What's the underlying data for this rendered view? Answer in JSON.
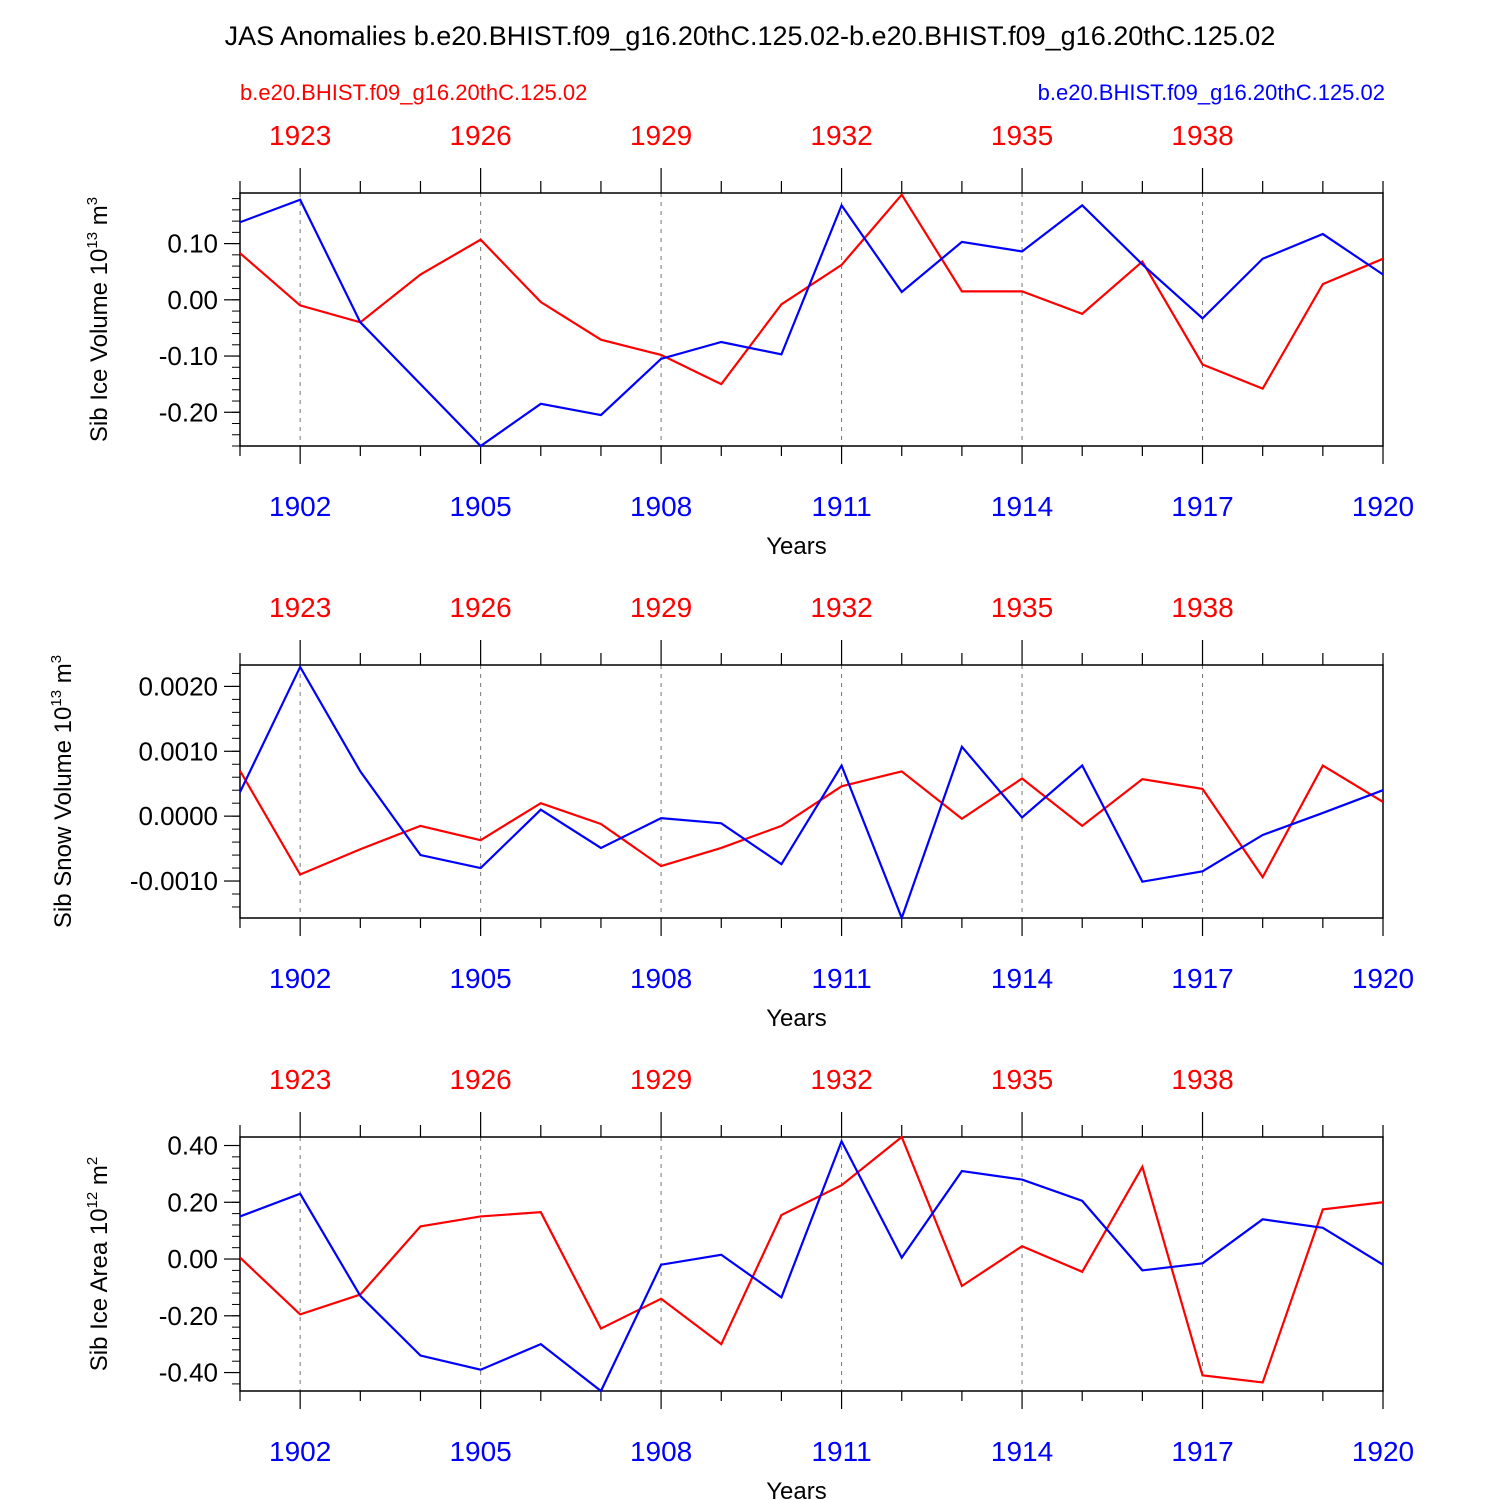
{
  "figure": {
    "title": "JAS Anomalies b.e20.BHIST.f09_g16.20thC.125.02-b.e20.BHIST.f09_g16.20thC.125.02",
    "left_case_label": "b.e20.BHIST.f09_g16.20thC.125.02",
    "right_case_label": "b.e20.BHIST.f09_g16.20thC.125.02",
    "colors": {
      "case_red": "#ff0000",
      "case_blue": "#0000ff",
      "axis": "#000000",
      "grid": "#777777"
    }
  },
  "chart_data": [
    {
      "type": "line",
      "ylabel": "Sib Ice Volume 10",
      "ylabel_exp": "13",
      "ylabel_unit": " m",
      "ylabel_unit_exp": "3",
      "xlabel": "Years",
      "ylim": [
        -0.26,
        0.19
      ],
      "yticks": [
        -0.2,
        -0.1,
        0.0,
        0.1
      ],
      "ytick_labels": [
        "-0.20",
        "-0.10",
        "0.00",
        "0.10"
      ],
      "yminor_step": 0.02,
      "bottom_axis": {
        "range": [
          1901,
          1920
        ],
        "ticks": [
          1902,
          1905,
          1908,
          1911,
          1914,
          1917,
          1920
        ],
        "labels": [
          "1902",
          "1905",
          "1908",
          "1911",
          "1914",
          "1917",
          "1920"
        ]
      },
      "top_axis": {
        "ticks": [
          1923,
          1926,
          1929,
          1932,
          1935,
          1938
        ],
        "labels": [
          "1923",
          "1926",
          "1929",
          "1932",
          "1935",
          "1938"
        ],
        "offset_years": 21
      },
      "grid_x": [
        1902,
        1905,
        1908,
        1911,
        1914,
        1917
      ],
      "series": [
        {
          "name": "b.e20.BHIST.f09_g16.20thC.125.02 (1921-1940)",
          "color": "red",
          "x": [
            1901,
            1902,
            1903,
            1904,
            1905,
            1906,
            1907,
            1908,
            1909,
            1910,
            1911,
            1912,
            1913,
            1914,
            1915,
            1916,
            1917,
            1918,
            1919,
            1920
          ],
          "values": [
            0.083,
            -0.01,
            -0.04,
            0.045,
            0.107,
            -0.004,
            -0.071,
            -0.098,
            -0.15,
            -0.008,
            0.062,
            0.187,
            0.015,
            0.015,
            -0.025,
            0.068,
            -0.115,
            -0.158,
            0.028,
            0.073
          ]
        },
        {
          "name": "b.e20.BHIST.f09_g16.20thC.125.02 (1901-1920)",
          "color": "blue",
          "x": [
            1901,
            1902,
            1903,
            1904,
            1905,
            1906,
            1907,
            1908,
            1909,
            1910,
            1911,
            1912,
            1913,
            1914,
            1915,
            1916,
            1917,
            1918,
            1919,
            1920
          ],
          "values": [
            0.138,
            0.178,
            -0.04,
            -0.15,
            -0.26,
            -0.185,
            -0.205,
            -0.105,
            -0.075,
            -0.097,
            0.168,
            0.014,
            0.103,
            0.086,
            0.168,
            0.063,
            -0.033,
            0.073,
            0.117,
            0.045
          ]
        }
      ]
    },
    {
      "type": "line",
      "ylabel": "Sib Snow Volume 10",
      "ylabel_exp": "13",
      "ylabel_unit": " m",
      "ylabel_unit_exp": "3",
      "xlabel": "Years",
      "ylim": [
        -0.00157,
        0.00233
      ],
      "yticks": [
        -0.001,
        0.0,
        0.001,
        0.002
      ],
      "ytick_labels": [
        "-0.0010",
        "0.0000",
        "0.0010",
        "0.0020"
      ],
      "yminor_step": 0.0002,
      "bottom_axis": {
        "range": [
          1901,
          1920
        ],
        "ticks": [
          1902,
          1905,
          1908,
          1911,
          1914,
          1917,
          1920
        ],
        "labels": [
          "1902",
          "1905",
          "1908",
          "1911",
          "1914",
          "1917",
          "1920"
        ]
      },
      "top_axis": {
        "ticks": [
          1923,
          1926,
          1929,
          1932,
          1935,
          1938
        ],
        "labels": [
          "1923",
          "1926",
          "1929",
          "1932",
          "1935",
          "1938"
        ],
        "offset_years": 21
      },
      "grid_x": [
        1902,
        1905,
        1908,
        1911,
        1914,
        1917
      ],
      "series": [
        {
          "name": "b.e20.BHIST.f09_g16.20thC.125.02 (1921-1940)",
          "color": "red",
          "x": [
            1901,
            1902,
            1903,
            1904,
            1905,
            1906,
            1907,
            1908,
            1909,
            1910,
            1911,
            1912,
            1913,
            1914,
            1915,
            1916,
            1917,
            1918,
            1919,
            1920
          ],
          "values": [
            0.0007,
            -0.0009,
            -0.00051,
            -0.00015,
            -0.00037,
            0.0002,
            -0.00012,
            -0.00077,
            -0.00049,
            -0.00015,
            0.00046,
            0.00069,
            -4e-05,
            0.00058,
            -0.00015,
            0.00057,
            0.00042,
            -0.00094,
            0.00078,
            0.00022
          ]
        },
        {
          "name": "b.e20.BHIST.f09_g16.20thC.125.02 (1901-1920)",
          "color": "blue",
          "x": [
            1901,
            1902,
            1903,
            1904,
            1905,
            1906,
            1907,
            1908,
            1909,
            1910,
            1911,
            1912,
            1913,
            1914,
            1915,
            1916,
            1917,
            1918,
            1919,
            1920
          ],
          "values": [
            0.00037,
            0.0023,
            0.00069,
            -0.0006,
            -0.0008,
            0.0001,
            -0.00049,
            -3e-05,
            -0.00011,
            -0.00074,
            0.00078,
            -0.00157,
            0.00107,
            -2e-05,
            0.00078,
            -0.00101,
            -0.00085,
            -0.00029,
            5e-05,
            0.0004
          ]
        }
      ]
    },
    {
      "type": "line",
      "ylabel": "Sib Ice Area 10",
      "ylabel_exp": "12",
      "ylabel_unit": " m",
      "ylabel_unit_exp": "2",
      "xlabel": "Years",
      "ylim": [
        -0.465,
        0.43
      ],
      "yticks": [
        -0.4,
        -0.2,
        0.0,
        0.2,
        0.4
      ],
      "ytick_labels": [
        "-0.40",
        "-0.20",
        "0.00",
        "0.20",
        "0.40"
      ],
      "yminor_step": 0.04,
      "bottom_axis": {
        "range": [
          1901,
          1920
        ],
        "ticks": [
          1902,
          1905,
          1908,
          1911,
          1914,
          1917,
          1920
        ],
        "labels": [
          "1902",
          "1905",
          "1908",
          "1911",
          "1914",
          "1917",
          "1920"
        ]
      },
      "top_axis": {
        "ticks": [
          1923,
          1926,
          1929,
          1932,
          1935,
          1938
        ],
        "labels": [
          "1923",
          "1926",
          "1929",
          "1932",
          "1935",
          "1938"
        ],
        "offset_years": 21
      },
      "grid_x": [
        1902,
        1905,
        1908,
        1911,
        1914,
        1917
      ],
      "series": [
        {
          "name": "b.e20.BHIST.f09_g16.20thC.125.02 (1921-1940)",
          "color": "red",
          "x": [
            1901,
            1902,
            1903,
            1904,
            1905,
            1906,
            1907,
            1908,
            1909,
            1910,
            1911,
            1912,
            1913,
            1914,
            1915,
            1916,
            1917,
            1918,
            1919,
            1920
          ],
          "values": [
            0.005,
            -0.195,
            -0.125,
            0.115,
            0.15,
            0.165,
            -0.245,
            -0.14,
            -0.3,
            0.155,
            0.26,
            0.43,
            -0.095,
            0.045,
            -0.045,
            0.325,
            -0.41,
            -0.435,
            0.175,
            0.2
          ]
        },
        {
          "name": "b.e20.BHIST.f09_g16.20thC.125.02 (1901-1920)",
          "color": "blue",
          "x": [
            1901,
            1902,
            1903,
            1904,
            1905,
            1906,
            1907,
            1908,
            1909,
            1910,
            1911,
            1912,
            1913,
            1914,
            1915,
            1916,
            1917,
            1918,
            1919,
            1920
          ],
          "values": [
            0.15,
            0.23,
            -0.13,
            -0.34,
            -0.39,
            -0.3,
            -0.465,
            -0.02,
            0.015,
            -0.135,
            0.415,
            0.005,
            0.31,
            0.28,
            0.205,
            -0.04,
            -0.015,
            0.14,
            0.11,
            -0.02
          ]
        }
      ]
    }
  ]
}
